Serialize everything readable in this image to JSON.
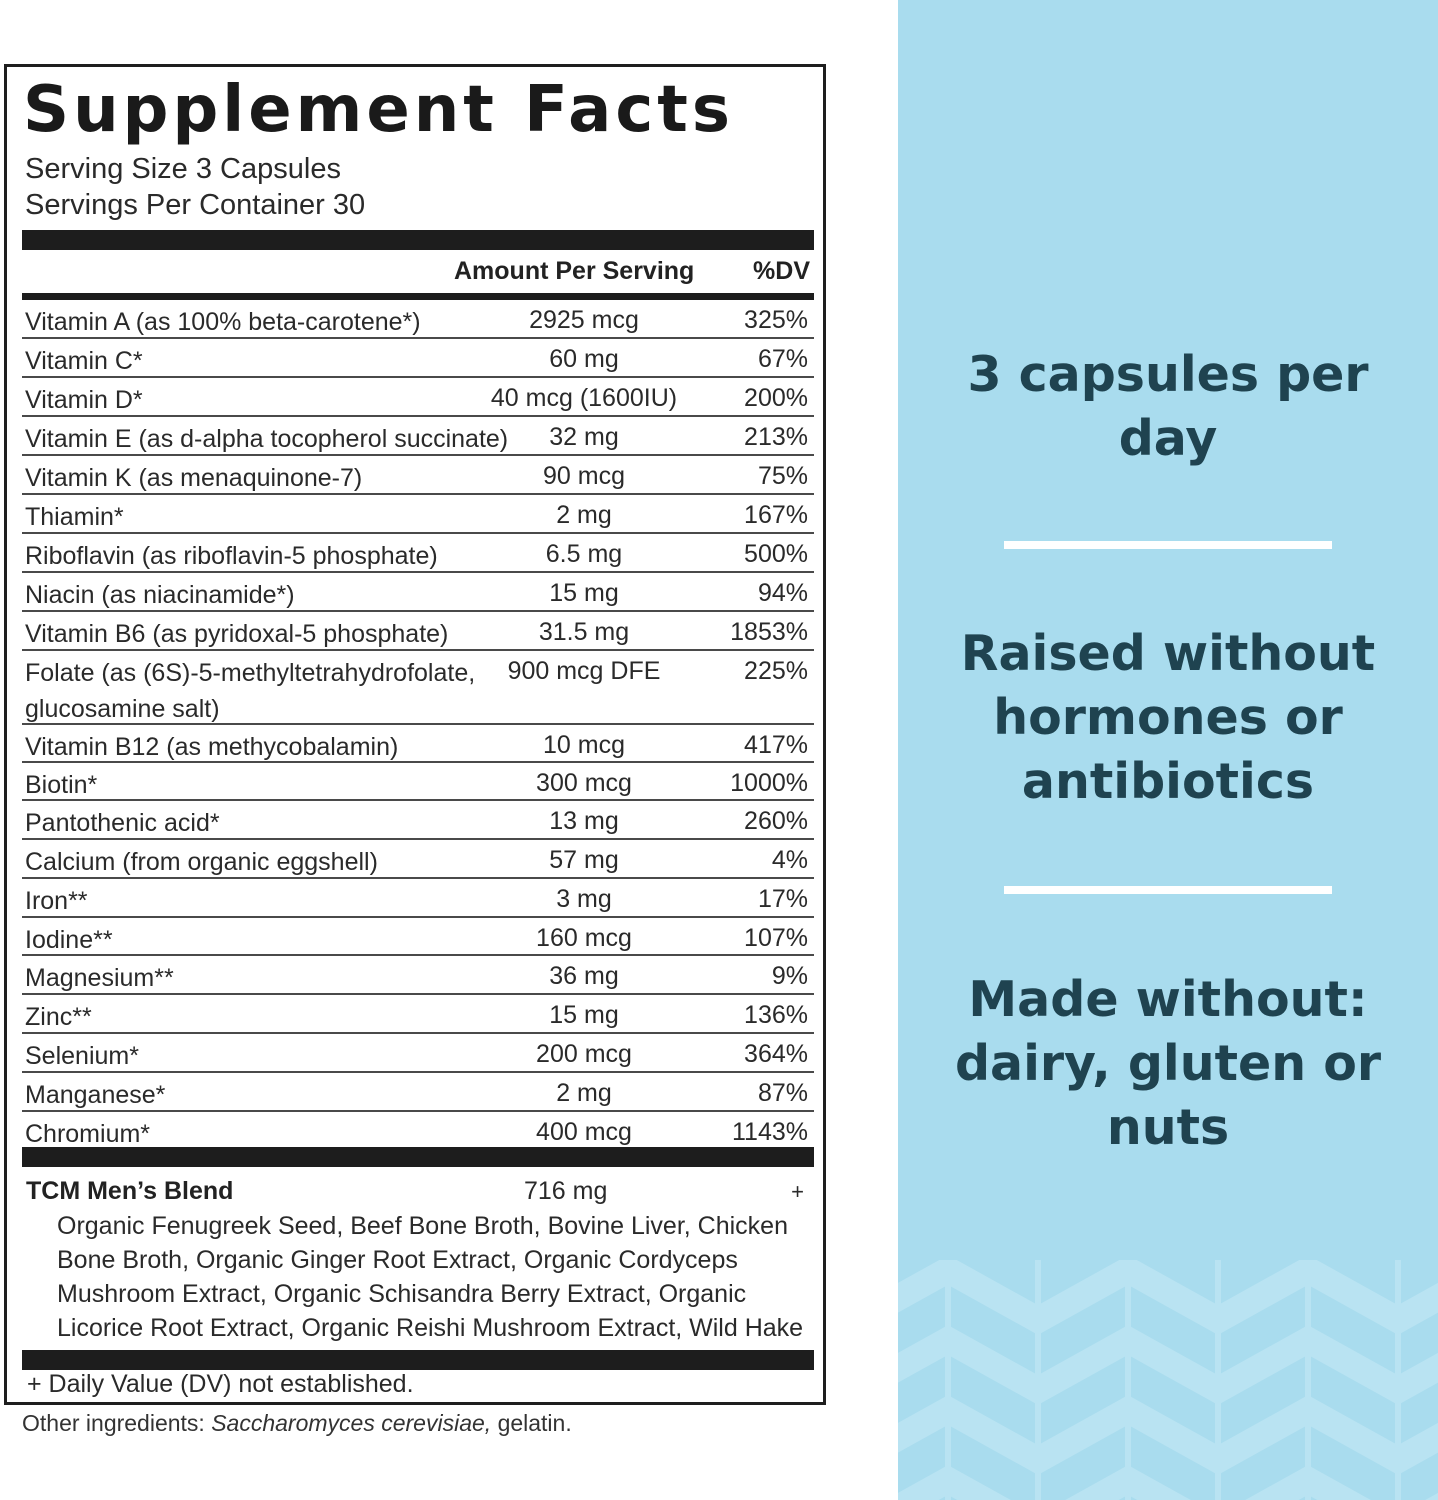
{
  "facts": {
    "title": "Supplement Facts",
    "serving_size": "Serving Size 3 Capsules",
    "servings_per_container": "Servings Per Container 30",
    "col_amount": "Amount Per Serving",
    "col_dv": "%DV",
    "rows": [
      {
        "name": "Vitamin A (as 100% beta-carotene*)",
        "amount": "2925 mcg",
        "dv": "325%"
      },
      {
        "name": "Vitamin C*",
        "amount": "60 mg",
        "dv": "67%"
      },
      {
        "name": "Vitamin D*",
        "amount": "40 mcg (1600IU)",
        "dv": "200%"
      },
      {
        "name": "Vitamin E (as d-alpha tocopherol succinate)",
        "amount": "32 mg",
        "dv": "213%"
      },
      {
        "name": "Vitamin K (as menaquinone-7)",
        "amount": "90 mcg",
        "dv": "75%"
      },
      {
        "name": "Thiamin*",
        "amount": "2 mg",
        "dv": "167%"
      },
      {
        "name": "Riboflavin (as riboflavin-5 phosphate)",
        "amount": "6.5 mg",
        "dv": "500%"
      },
      {
        "name": "Niacin (as niacinamide*)",
        "amount": "15 mg",
        "dv": "94%"
      },
      {
        "name": "Vitamin B6 (as pyridoxal-5 phosphate)",
        "amount": "31.5 mg",
        "dv": "1853%"
      },
      {
        "name": "Folate (as (6S)-5-methyltetrahydrofolate, glucosamine salt)",
        "amount": "900 mcg DFE",
        "dv": "225%"
      },
      {
        "name": "Vitamin B12 (as methycobalamin)",
        "amount": "10 mcg",
        "dv": "417%"
      },
      {
        "name": "Biotin*",
        "amount": "300 mcg",
        "dv": "1000%"
      },
      {
        "name": "Pantothenic acid*",
        "amount": "13 mg",
        "dv": "260%"
      },
      {
        "name": "Calcium (from organic eggshell)",
        "amount": "57 mg",
        "dv": "4%"
      },
      {
        "name": "Iron**",
        "amount": "3 mg",
        "dv": "17%"
      },
      {
        "name": "Iodine**",
        "amount": "160 mcg",
        "dv": "107%"
      },
      {
        "name": "Magnesium**",
        "amount": "36 mg",
        "dv": "9%"
      },
      {
        "name": "Zinc**",
        "amount": "15 mg",
        "dv": "136%"
      },
      {
        "name": "Selenium*",
        "amount": "200 mcg",
        "dv": "364%"
      },
      {
        "name": "Manganese*",
        "amount": "2 mg",
        "dv": "87%"
      },
      {
        "name": "Chromium*",
        "amount": "400 mcg",
        "dv": "1143%"
      }
    ],
    "blend": {
      "name": "TCM Men’s Blend",
      "amount": "716 mg",
      "dv": "+",
      "ingredients": "Organic Fenugreek Seed, Beef Bone Broth, Bovine Liver, Chicken Bone Broth, Organic Ginger Root Extract, Organic Cordyceps Mushroom Extract, Organic Schisandra Berry Extract, Organic Licorice Root Extract, Organic Reishi Mushroom Extract, Wild Hake Roe"
    },
    "footnote": "+ Daily Value (DV) not established."
  },
  "other_ingredients": {
    "label": "Other ingredients:",
    "italic": "Saccharomyces cerevisiae,",
    "rest": "gelatin."
  },
  "claims": {
    "claim1": "3 capsules per day",
    "claim2": "Raised without hormones or antibiotics",
    "claim3": "Made without: dairy, gluten or nuts"
  },
  "colors": {
    "panel_blue": "#a9dcee",
    "claim_text": "#1f4350",
    "rule_black": "#1d1d1d"
  }
}
